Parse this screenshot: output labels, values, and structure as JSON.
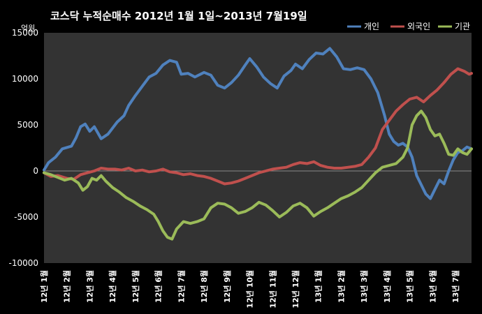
{
  "chart_data": {
    "type": "line",
    "title": "코스닥 누적순매수 2012년 1월 1일~2013년 7월19일",
    "unit_label": "억원",
    "ylim": [
      -10000,
      15000
    ],
    "yticks": [
      15000,
      10000,
      5000,
      0,
      -5000,
      -10000
    ],
    "xlim": [
      0,
      18.7
    ],
    "grid": false,
    "legend_position": "top-right",
    "categories": [
      "12년 1월",
      "12년 2월",
      "12년 3월",
      "12년 4월",
      "12년 5월",
      "12년 6월",
      "12년 7월",
      "12년 8월",
      "12년 9월",
      "12년 10월",
      "12년 11월",
      "12년 12월",
      "13년 1월",
      "13년 2월",
      "13년 3월",
      "13년 4월",
      "13년 5월",
      "13년 6월",
      "13년 7월"
    ],
    "series": [
      {
        "name": "개인",
        "color": "#4f81bd",
        "points": [
          [
            0,
            100
          ],
          [
            0.2,
            900
          ],
          [
            0.5,
            1500
          ],
          [
            0.8,
            2400
          ],
          [
            1.2,
            2700
          ],
          [
            1.4,
            3600
          ],
          [
            1.6,
            4800
          ],
          [
            1.8,
            5100
          ],
          [
            2.0,
            4300
          ],
          [
            2.2,
            4800
          ],
          [
            2.5,
            3500
          ],
          [
            2.8,
            4000
          ],
          [
            3.2,
            5300
          ],
          [
            3.5,
            6000
          ],
          [
            3.7,
            7100
          ],
          [
            4.0,
            8200
          ],
          [
            4.3,
            9200
          ],
          [
            4.6,
            10200
          ],
          [
            4.9,
            10600
          ],
          [
            5.2,
            11500
          ],
          [
            5.5,
            12000
          ],
          [
            5.8,
            11800
          ],
          [
            6.0,
            10500
          ],
          [
            6.3,
            10600
          ],
          [
            6.6,
            10200
          ],
          [
            7.0,
            10700
          ],
          [
            7.3,
            10400
          ],
          [
            7.6,
            9300
          ],
          [
            7.9,
            9000
          ],
          [
            8.2,
            9600
          ],
          [
            8.5,
            10400
          ],
          [
            8.8,
            11500
          ],
          [
            9.0,
            12200
          ],
          [
            9.3,
            11300
          ],
          [
            9.6,
            10200
          ],
          [
            9.9,
            9500
          ],
          [
            10.2,
            9000
          ],
          [
            10.5,
            10300
          ],
          [
            10.8,
            10900
          ],
          [
            11.0,
            11600
          ],
          [
            11.3,
            11100
          ],
          [
            11.6,
            12100
          ],
          [
            11.9,
            12800
          ],
          [
            12.2,
            12700
          ],
          [
            12.5,
            13300
          ],
          [
            12.8,
            12400
          ],
          [
            13.1,
            11100
          ],
          [
            13.4,
            11000
          ],
          [
            13.7,
            11200
          ],
          [
            14.0,
            11000
          ],
          [
            14.3,
            10000
          ],
          [
            14.6,
            8500
          ],
          [
            14.9,
            6000
          ],
          [
            15.1,
            4000
          ],
          [
            15.3,
            3200
          ],
          [
            15.5,
            2800
          ],
          [
            15.7,
            3000
          ],
          [
            15.9,
            2600
          ],
          [
            16.1,
            1500
          ],
          [
            16.3,
            -500
          ],
          [
            16.5,
            -1500
          ],
          [
            16.7,
            -2500
          ],
          [
            16.9,
            -3000
          ],
          [
            17.1,
            -2000
          ],
          [
            17.3,
            -1000
          ],
          [
            17.5,
            -1400
          ],
          [
            17.7,
            0
          ],
          [
            17.9,
            1200
          ],
          [
            18.1,
            2000
          ],
          [
            18.3,
            2200
          ],
          [
            18.5,
            2600
          ],
          [
            18.7,
            2400
          ]
        ]
      },
      {
        "name": "외국인",
        "color": "#c0504d",
        "points": [
          [
            0,
            -200
          ],
          [
            0.3,
            -600
          ],
          [
            0.6,
            -500
          ],
          [
            1.0,
            -800
          ],
          [
            1.3,
            -900
          ],
          [
            1.6,
            -400
          ],
          [
            1.9,
            -200
          ],
          [
            2.2,
            0
          ],
          [
            2.5,
            300
          ],
          [
            2.8,
            200
          ],
          [
            3.1,
            200
          ],
          [
            3.4,
            100
          ],
          [
            3.7,
            300
          ],
          [
            4.0,
            0
          ],
          [
            4.3,
            100
          ],
          [
            4.6,
            -100
          ],
          [
            4.9,
            0
          ],
          [
            5.2,
            200
          ],
          [
            5.5,
            -100
          ],
          [
            5.8,
            -200
          ],
          [
            6.1,
            -400
          ],
          [
            6.4,
            -300
          ],
          [
            6.7,
            -500
          ],
          [
            7.0,
            -600
          ],
          [
            7.3,
            -800
          ],
          [
            7.6,
            -1100
          ],
          [
            7.9,
            -1400
          ],
          [
            8.2,
            -1300
          ],
          [
            8.5,
            -1100
          ],
          [
            8.8,
            -800
          ],
          [
            9.1,
            -500
          ],
          [
            9.4,
            -200
          ],
          [
            9.7,
            0
          ],
          [
            10.0,
            200
          ],
          [
            10.3,
            300
          ],
          [
            10.6,
            400
          ],
          [
            10.9,
            700
          ],
          [
            11.2,
            900
          ],
          [
            11.5,
            800
          ],
          [
            11.8,
            1000
          ],
          [
            12.1,
            600
          ],
          [
            12.4,
            400
          ],
          [
            12.7,
            300
          ],
          [
            13.0,
            300
          ],
          [
            13.3,
            400
          ],
          [
            13.6,
            500
          ],
          [
            13.9,
            700
          ],
          [
            14.2,
            1500
          ],
          [
            14.5,
            2500
          ],
          [
            14.8,
            4500
          ],
          [
            15.1,
            5500
          ],
          [
            15.4,
            6500
          ],
          [
            15.7,
            7200
          ],
          [
            16.0,
            7800
          ],
          [
            16.3,
            8000
          ],
          [
            16.6,
            7500
          ],
          [
            16.9,
            8200
          ],
          [
            17.2,
            8800
          ],
          [
            17.5,
            9600
          ],
          [
            17.8,
            10500
          ],
          [
            18.1,
            11100
          ],
          [
            18.4,
            10800
          ],
          [
            18.6,
            10500
          ],
          [
            18.7,
            10600
          ]
        ]
      },
      {
        "name": "기관",
        "color": "#9bbb59",
        "points": [
          [
            0,
            -200
          ],
          [
            0.3,
            -400
          ],
          [
            0.6,
            -700
          ],
          [
            0.9,
            -1000
          ],
          [
            1.2,
            -800
          ],
          [
            1.5,
            -1300
          ],
          [
            1.7,
            -2100
          ],
          [
            1.9,
            -1700
          ],
          [
            2.1,
            -800
          ],
          [
            2.3,
            -1000
          ],
          [
            2.5,
            -500
          ],
          [
            2.7,
            -1100
          ],
          [
            3.0,
            -1800
          ],
          [
            3.3,
            -2300
          ],
          [
            3.6,
            -2900
          ],
          [
            3.9,
            -3300
          ],
          [
            4.2,
            -3800
          ],
          [
            4.5,
            -4200
          ],
          [
            4.8,
            -4700
          ],
          [
            5.0,
            -5500
          ],
          [
            5.2,
            -6500
          ],
          [
            5.4,
            -7200
          ],
          [
            5.6,
            -7400
          ],
          [
            5.8,
            -6300
          ],
          [
            6.1,
            -5500
          ],
          [
            6.4,
            -5700
          ],
          [
            6.7,
            -5500
          ],
          [
            7.0,
            -5200
          ],
          [
            7.3,
            -4000
          ],
          [
            7.6,
            -3500
          ],
          [
            7.9,
            -3600
          ],
          [
            8.2,
            -4000
          ],
          [
            8.5,
            -4600
          ],
          [
            8.8,
            -4400
          ],
          [
            9.1,
            -4000
          ],
          [
            9.4,
            -3400
          ],
          [
            9.7,
            -3700
          ],
          [
            10.0,
            -4300
          ],
          [
            10.3,
            -5000
          ],
          [
            10.6,
            -4500
          ],
          [
            10.9,
            -3800
          ],
          [
            11.2,
            -3500
          ],
          [
            11.5,
            -4000
          ],
          [
            11.8,
            -4900
          ],
          [
            12.1,
            -4400
          ],
          [
            12.4,
            -4000
          ],
          [
            12.7,
            -3500
          ],
          [
            13.0,
            -3000
          ],
          [
            13.3,
            -2700
          ],
          [
            13.6,
            -2300
          ],
          [
            13.9,
            -1800
          ],
          [
            14.2,
            -1000
          ],
          [
            14.5,
            -200
          ],
          [
            14.8,
            400
          ],
          [
            15.1,
            600
          ],
          [
            15.4,
            800
          ],
          [
            15.7,
            1500
          ],
          [
            15.9,
            2500
          ],
          [
            16.1,
            5000
          ],
          [
            16.3,
            6000
          ],
          [
            16.5,
            6500
          ],
          [
            16.7,
            5800
          ],
          [
            16.9,
            4500
          ],
          [
            17.1,
            3800
          ],
          [
            17.3,
            4000
          ],
          [
            17.5,
            3000
          ],
          [
            17.7,
            1800
          ],
          [
            17.9,
            1700
          ],
          [
            18.1,
            2400
          ],
          [
            18.3,
            2000
          ],
          [
            18.5,
            1800
          ],
          [
            18.7,
            2400
          ]
        ]
      }
    ]
  }
}
